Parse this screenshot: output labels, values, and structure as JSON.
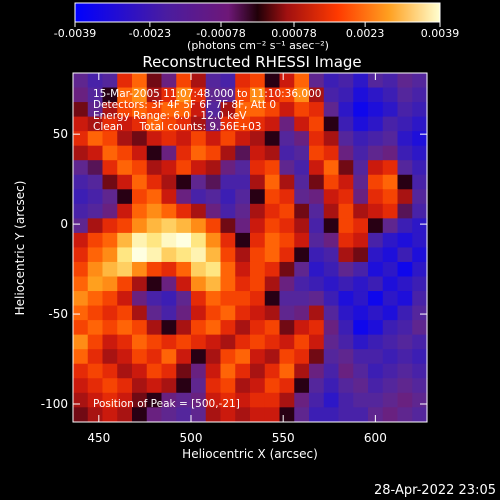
{
  "chart_data": {
    "type": "heatmap",
    "title": "Reconstructed RHESSI Image",
    "xlabel": "Heliocentric X (arcsec)",
    "ylabel": "Heliocentric Y (arcsec)",
    "xlim": [
      436,
      628
    ],
    "ylim": [
      -110,
      84
    ],
    "x_ticks": [
      450,
      500,
      550,
      600
    ],
    "y_ticks": [
      -100,
      -50,
      0,
      50
    ],
    "colorbar": {
      "ticks": [
        "-0.0039",
        "-0.0023",
        "-0.00078",
        "0.00078",
        "0.0023",
        "0.0039"
      ],
      "range": [
        -0.0039,
        0.0039
      ],
      "units": "(photons cm⁻² s⁻¹ asec⁻²)"
    },
    "annotations": [
      "15-Mar-2005 11:07:48.000 to 11:10:36.000",
      "Detectors: 3F 4F 5F 6F 7F 8F, Att 0",
      "Energy Range: 6.0 - 12.0 keV",
      "Clean     Total counts: 9.56E+03"
    ],
    "peak_label": "Position of Peak = [500,-21]",
    "timestamp": "28-Apr-2022 23:05",
    "grid": {
      "nx": 24,
      "ny": 24,
      "x0": 436,
      "dx": 8,
      "y0": 84,
      "dy": 8.08,
      "values": [
        [
          -0.3,
          -0.5,
          -0.4,
          0.4,
          0.6,
          0.1,
          -0.2,
          0.5,
          0.2,
          -0.4,
          -0.5,
          0.4,
          0.5,
          0.0,
          0.3,
          0.6,
          -0.3,
          -0.6,
          -0.5,
          -0.7,
          -0.4,
          -0.5,
          -0.3,
          -0.4
        ],
        [
          -0.2,
          -0.4,
          0.0,
          0.6,
          0.7,
          0.2,
          0.4,
          0.7,
          0.4,
          -0.3,
          -0.3,
          0.5,
          0.7,
          0.4,
          0.5,
          0.7,
          0.2,
          -0.5,
          -0.6,
          -0.8,
          -0.7,
          -0.6,
          -0.4,
          -0.5
        ],
        [
          0.1,
          -0.3,
          0.2,
          0.5,
          0.6,
          0.5,
          0.6,
          0.6,
          0.3,
          -0.4,
          0.2,
          0.6,
          0.6,
          0.5,
          0.3,
          0.5,
          0.4,
          -0.3,
          -0.7,
          -0.9,
          -0.8,
          -0.7,
          -0.5,
          -0.6
        ],
        [
          0.3,
          0.2,
          0.4,
          0.3,
          0.4,
          0.6,
          0.5,
          0.4,
          0.2,
          -0.2,
          0.4,
          0.5,
          0.4,
          0.3,
          -0.2,
          0.3,
          0.5,
          0.0,
          -0.6,
          -0.8,
          -0.7,
          -0.5,
          -0.6,
          -0.7
        ],
        [
          0.4,
          0.6,
          0.5,
          0.2,
          0.1,
          0.3,
          0.4,
          0.3,
          0.5,
          0.3,
          0.5,
          0.3,
          0.2,
          0.0,
          -0.4,
          -0.2,
          0.4,
          0.2,
          -0.4,
          -0.6,
          -0.5,
          -0.4,
          -0.7,
          -0.8
        ],
        [
          0.2,
          0.3,
          0.6,
          0.5,
          0.3,
          0.0,
          -0.2,
          0.4,
          0.6,
          0.5,
          0.2,
          -0.1,
          0.3,
          0.2,
          -0.5,
          -0.4,
          0.5,
          0.4,
          -0.2,
          -0.5,
          -0.3,
          -0.2,
          -0.6,
          -0.7
        ],
        [
          -0.3,
          -0.1,
          0.4,
          0.6,
          0.5,
          0.2,
          0.3,
          0.5,
          0.3,
          0.2,
          -0.2,
          -0.4,
          0.4,
          0.5,
          -0.3,
          -0.5,
          0.3,
          0.6,
          0.1,
          -0.4,
          0.3,
          0.4,
          -0.4,
          -0.6
        ],
        [
          -0.5,
          -0.4,
          0.1,
          0.3,
          0.6,
          0.4,
          0.2,
          0.0,
          -0.3,
          -0.1,
          -0.5,
          -0.5,
          0.2,
          0.6,
          0.2,
          -0.4,
          0.1,
          0.5,
          0.3,
          -0.3,
          0.5,
          0.6,
          0.0,
          -0.5
        ],
        [
          -0.6,
          -0.5,
          -0.3,
          0.0,
          0.5,
          0.6,
          0.3,
          -0.2,
          -0.5,
          -0.4,
          -0.6,
          -0.4,
          0.0,
          0.5,
          0.4,
          -0.3,
          -0.2,
          0.3,
          0.4,
          -0.2,
          0.4,
          0.5,
          0.2,
          -0.4
        ],
        [
          -0.5,
          -0.4,
          -0.2,
          0.3,
          0.6,
          0.7,
          0.6,
          0.4,
          0.2,
          -0.2,
          -0.5,
          -0.3,
          0.2,
          0.4,
          0.5,
          0.1,
          -0.4,
          0.2,
          0.5,
          0.2,
          0.3,
          0.4,
          -0.1,
          -0.5
        ],
        [
          -0.3,
          0.2,
          0.4,
          0.5,
          0.7,
          0.8,
          0.85,
          0.8,
          0.7,
          0.5,
          0.1,
          -0.2,
          0.3,
          0.5,
          0.4,
          0.2,
          -0.5,
          0.0,
          0.5,
          0.4,
          0.0,
          -0.3,
          -0.6,
          -0.7
        ],
        [
          0.3,
          0.5,
          0.6,
          0.8,
          0.95,
          0.9,
          0.97,
          1.0,
          0.9,
          0.7,
          0.4,
          0.0,
          0.4,
          0.6,
          0.5,
          0.3,
          -0.4,
          -0.2,
          0.4,
          0.3,
          -0.5,
          -0.7,
          -0.8,
          -0.7
        ],
        [
          0.4,
          0.6,
          0.7,
          0.9,
          1.0,
          0.95,
          0.85,
          0.9,
          0.95,
          0.8,
          0.5,
          0.2,
          0.5,
          0.6,
          0.4,
          0.0,
          -0.6,
          -0.5,
          0.2,
          0.1,
          -0.7,
          -0.8,
          -0.6,
          -0.8
        ],
        [
          0.5,
          0.7,
          0.8,
          0.85,
          0.7,
          0.5,
          0.4,
          0.6,
          0.85,
          0.9,
          0.6,
          0.3,
          0.5,
          0.4,
          0.1,
          -0.3,
          -0.7,
          -0.6,
          -0.3,
          -0.5,
          -0.8,
          -0.7,
          -0.9,
          -0.7
        ],
        [
          0.6,
          0.75,
          0.7,
          0.5,
          0.2,
          0.0,
          -0.2,
          0.3,
          0.7,
          0.8,
          0.6,
          0.4,
          0.5,
          0.2,
          -0.2,
          -0.5,
          -0.6,
          -0.7,
          -0.6,
          -0.7,
          -0.6,
          -0.8,
          -0.7,
          -0.6
        ],
        [
          0.7,
          0.6,
          0.5,
          0.3,
          -0.2,
          -0.5,
          -0.6,
          -0.3,
          0.4,
          0.6,
          0.5,
          0.5,
          0.4,
          0.0,
          -0.4,
          -0.4,
          -0.3,
          -0.6,
          -0.8,
          -0.7,
          -0.9,
          -0.7,
          -0.8,
          -0.5
        ],
        [
          0.6,
          0.5,
          0.4,
          0.5,
          0.2,
          -0.3,
          -0.5,
          -0.2,
          0.3,
          0.5,
          0.6,
          0.4,
          0.3,
          0.2,
          -0.3,
          -0.2,
          0.2,
          -0.4,
          -0.7,
          -0.8,
          -0.7,
          -0.8,
          -0.6,
          -0.4
        ],
        [
          0.5,
          0.6,
          0.5,
          0.6,
          0.5,
          0.2,
          0.0,
          0.2,
          0.5,
          0.6,
          0.4,
          0.2,
          0.4,
          0.5,
          0.1,
          0.3,
          0.4,
          -0.2,
          -0.6,
          -0.9,
          -0.8,
          -0.6,
          -0.5,
          -0.3
        ],
        [
          0.7,
          0.5,
          0.3,
          0.4,
          0.6,
          0.5,
          0.4,
          0.5,
          0.4,
          0.3,
          0.2,
          0.4,
          0.5,
          0.4,
          0.3,
          0.5,
          0.3,
          -0.3,
          -0.5,
          -0.7,
          -0.6,
          -0.5,
          -0.4,
          -0.5
        ],
        [
          0.6,
          0.4,
          0.2,
          0.3,
          0.5,
          0.4,
          0.6,
          0.3,
          0.0,
          0.2,
          0.5,
          0.6,
          0.3,
          0.2,
          0.5,
          0.4,
          0.1,
          -0.4,
          -0.3,
          -0.5,
          -0.5,
          -0.6,
          -0.5,
          -0.6
        ],
        [
          0.4,
          0.5,
          0.4,
          0.2,
          0.3,
          0.5,
          0.4,
          0.1,
          -0.2,
          0.3,
          0.6,
          0.4,
          0.2,
          0.4,
          0.6,
          0.2,
          -0.2,
          -0.5,
          -0.2,
          -0.4,
          -0.6,
          -0.5,
          -0.4,
          -0.5
        ],
        [
          0.3,
          0.4,
          0.5,
          0.4,
          0.2,
          0.3,
          0.2,
          0.0,
          -0.3,
          0.4,
          0.5,
          0.2,
          0.3,
          0.5,
          0.4,
          0.0,
          -0.4,
          -0.6,
          -0.4,
          -0.3,
          -0.5,
          -0.4,
          -0.3,
          -0.4
        ],
        [
          0.2,
          0.3,
          0.4,
          0.3,
          0.1,
          0.0,
          -0.2,
          -0.3,
          -0.2,
          0.3,
          0.4,
          0.3,
          0.4,
          0.4,
          0.2,
          -0.2,
          -0.5,
          -0.7,
          -0.5,
          -0.4,
          -0.4,
          -0.3,
          -0.2,
          -0.3
        ],
        [
          0.1,
          0.2,
          0.3,
          0.2,
          0.0,
          -0.2,
          -0.3,
          -0.4,
          -0.3,
          0.2,
          0.3,
          0.2,
          0.3,
          0.3,
          0.0,
          -0.3,
          -0.6,
          -0.6,
          -0.5,
          -0.5,
          -0.3,
          -0.2,
          -0.3,
          -0.4
        ]
      ]
    }
  }
}
